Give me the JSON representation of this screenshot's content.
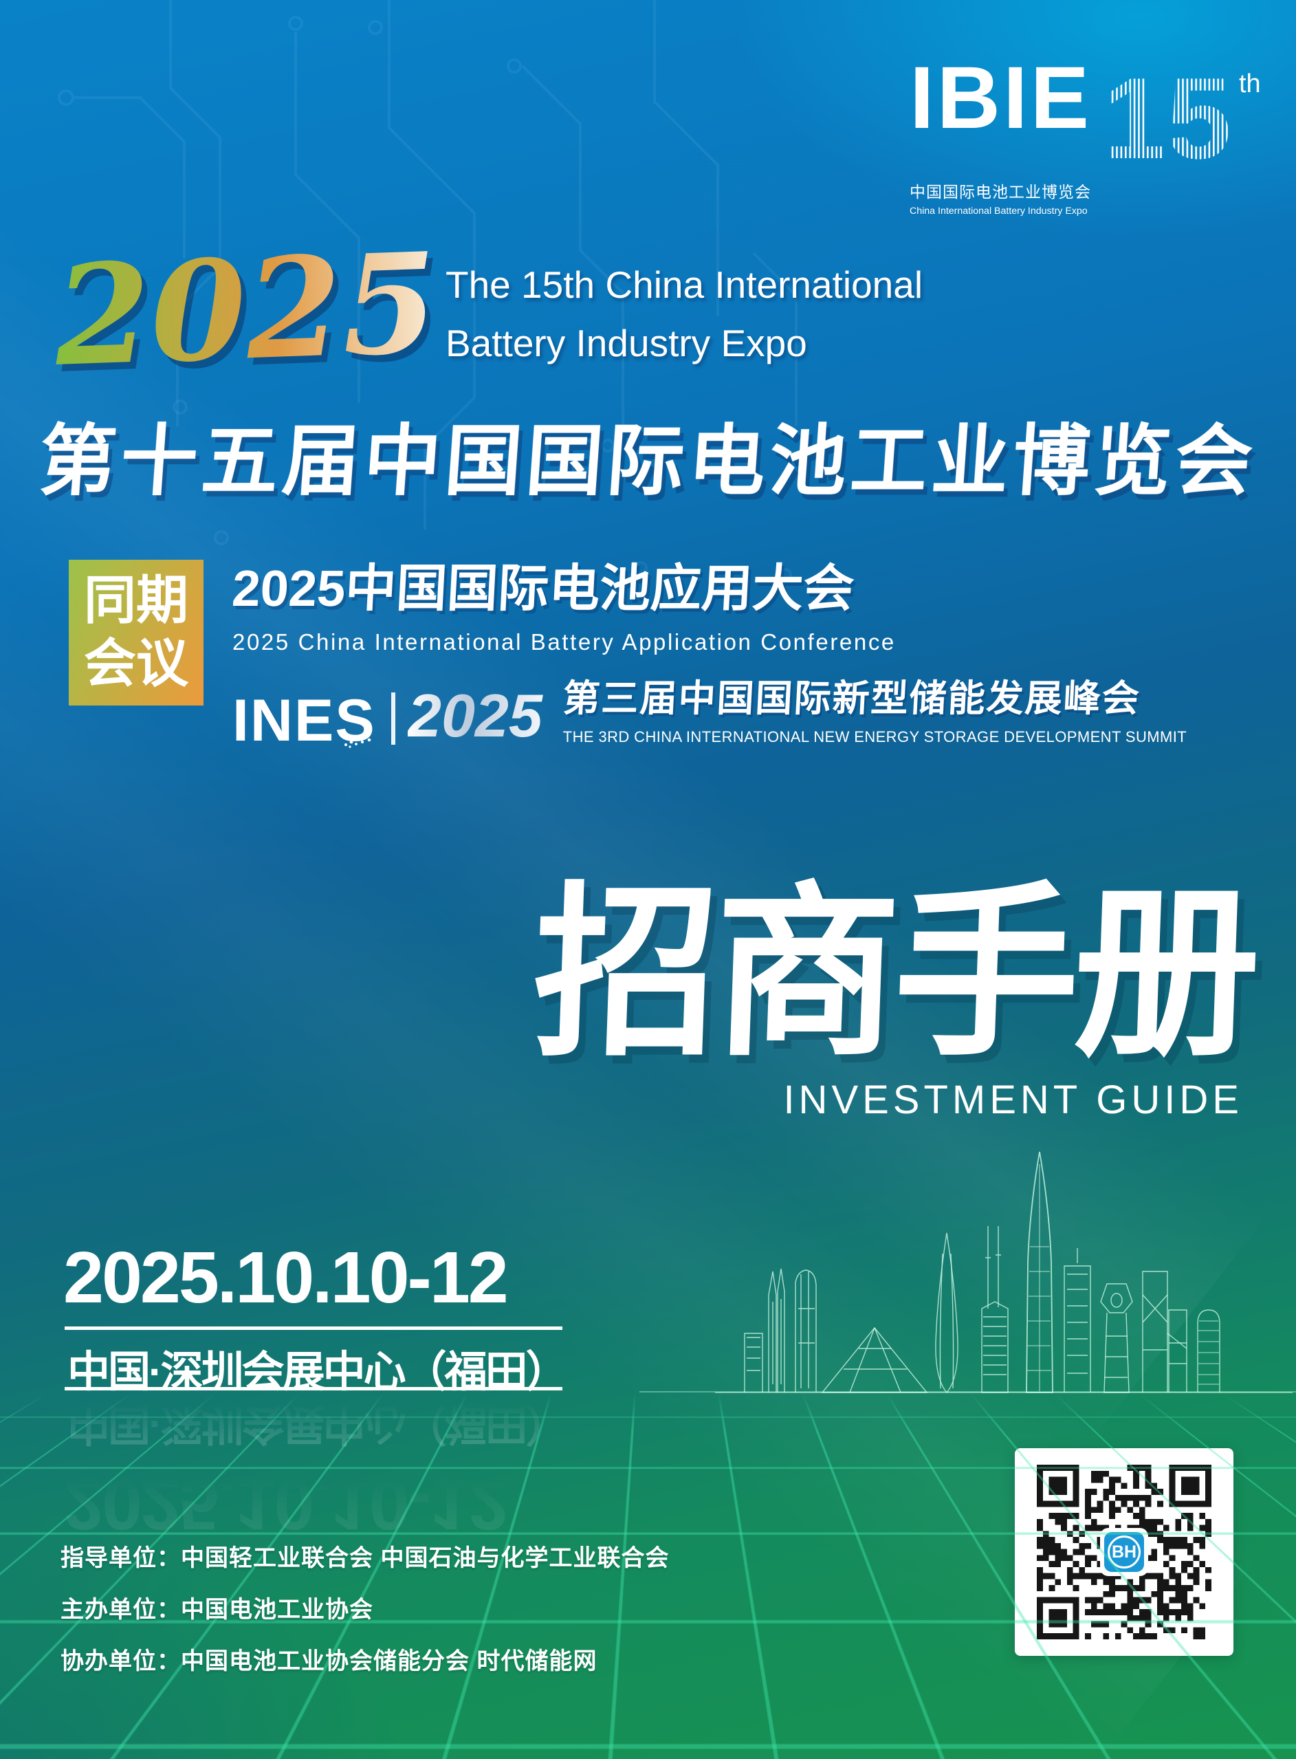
{
  "logo": {
    "wordmark": "IBIE",
    "edition_number": "15",
    "edition_suffix": "th",
    "title_zh": "中国国际电池工业博览会",
    "title_en": "China International Battery Industry Expo"
  },
  "hero": {
    "year": "2025",
    "title_en_line1": "The 15th China International",
    "title_en_line2": "Battery Industry Expo",
    "title_zh": "第十五届中国国际电池工业博览会"
  },
  "concurrent": {
    "badge_line1": "同期",
    "badge_line2": "会议",
    "conf1_zh": "2025中国国际电池应用大会",
    "conf1_en": "2025  China  International  Battery  Application  Conference",
    "ines_wordmark": "INES",
    "ines_year": "2025",
    "conf2_zh": "第三届中国国际新型储能发展峰会",
    "conf2_en": "THE 3RD CHINA INTERNATIONAL NEW ENERGY STORAGE DEVELOPMENT SUMMIT"
  },
  "guide": {
    "title_zh": "招商手册",
    "title_en": "INVESTMENT GUIDE"
  },
  "event": {
    "date": "2025.10.10-12",
    "venue": "中国·深圳会展中心（福田）"
  },
  "organizers": [
    "指导单位：中国轻工业联合会  中国石油与化学工业联合会",
    "主办单位：中国电池工业协会",
    "协办单位：中国电池工业协会储能分会  时代储能网"
  ],
  "qr": {
    "logo_text": "BH"
  },
  "colors": {
    "bg_top_blue": "#0a82c8",
    "bg_cyan_glow": "#00c3f0",
    "bg_teal": "#116b7e",
    "bg_green": "#17934f",
    "badge_gradient_from": "#9cc24a",
    "badge_gradient_to": "#ec9a3c",
    "year_green": "#86bf3e",
    "year_orange": "#e09a44",
    "year_cream": "#f8ecd9",
    "grid_line_green": "#3ee8ac",
    "qr_logo_blue": "#1a97d5",
    "title_shadow_navy": "#0a3270"
  }
}
